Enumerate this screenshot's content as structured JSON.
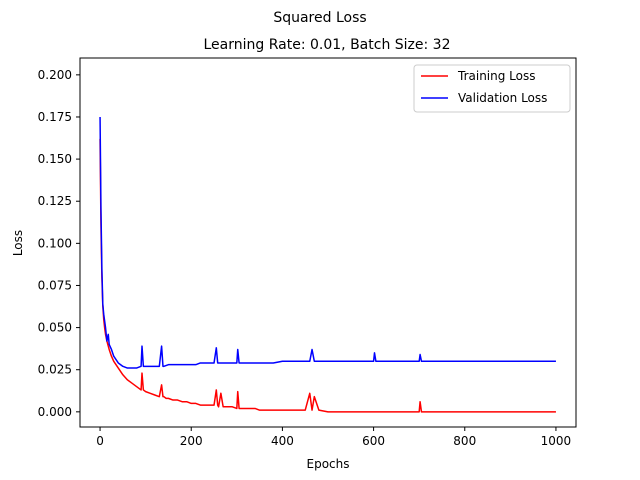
{
  "chart_data": {
    "type": "line",
    "title": "Squared Loss",
    "subtitle": "Learning Rate: 0.01, Batch Size: 32",
    "xlabel": "Epochs",
    "ylabel": "Loss",
    "xlim": [
      -44,
      1044
    ],
    "ylim": [
      -0.009,
      0.21
    ],
    "xticks": [
      0,
      200,
      400,
      600,
      800,
      1000
    ],
    "xtick_labels": [
      "0",
      "200",
      "400",
      "600",
      "800",
      "1000"
    ],
    "yticks": [
      0.0,
      0.025,
      0.05,
      0.075,
      0.1,
      0.125,
      0.15,
      0.175,
      0.2
    ],
    "ytick_labels": [
      "0.000",
      "0.025",
      "0.050",
      "0.075",
      "0.100",
      "0.125",
      "0.150",
      "0.175",
      "0.200"
    ],
    "grid": false,
    "legend": "top-right",
    "series": [
      {
        "name": "Training Loss",
        "color": "#ff0000",
        "x": [
          0,
          2,
          4,
          6,
          8,
          10,
          12,
          15,
          20,
          25,
          30,
          40,
          50,
          60,
          70,
          80,
          90,
          92,
          95,
          100,
          110,
          120,
          130,
          135,
          138,
          140,
          145,
          150,
          160,
          170,
          180,
          190,
          200,
          210,
          220,
          230,
          240,
          250,
          255,
          258,
          260,
          265,
          270,
          275,
          280,
          290,
          300,
          302,
          305,
          310,
          320,
          330,
          340,
          350,
          360,
          370,
          380,
          400,
          420,
          440,
          450,
          460,
          465,
          470,
          480,
          500,
          520,
          540,
          560,
          580,
          600,
          620,
          650,
          680,
          700,
          702,
          705,
          720,
          750,
          800,
          850,
          900,
          950,
          1000
        ],
        "values": [
          0.162,
          0.11,
          0.08,
          0.063,
          0.055,
          0.05,
          0.046,
          0.042,
          0.037,
          0.033,
          0.03,
          0.026,
          0.022,
          0.019,
          0.017,
          0.015,
          0.013,
          0.023,
          0.013,
          0.012,
          0.011,
          0.01,
          0.009,
          0.016,
          0.009,
          0.009,
          0.008,
          0.008,
          0.007,
          0.007,
          0.006,
          0.006,
          0.005,
          0.005,
          0.004,
          0.004,
          0.004,
          0.004,
          0.013,
          0.004,
          0.003,
          0.011,
          0.003,
          0.003,
          0.003,
          0.003,
          0.002,
          0.012,
          0.002,
          0.002,
          0.002,
          0.002,
          0.002,
          0.001,
          0.001,
          0.001,
          0.001,
          0.001,
          0.001,
          0.001,
          0.001,
          0.011,
          0.001,
          0.009,
          0.001,
          0.0,
          0.0,
          0.0,
          0.0,
          0.0,
          0.0,
          0.0,
          0.0,
          0.0,
          0.0,
          0.006,
          0.0,
          0.0,
          0.0,
          0.0,
          0.0,
          0.0,
          0.0,
          0.0
        ]
      },
      {
        "name": "Validation Loss",
        "color": "#0000ff",
        "x": [
          0,
          2,
          4,
          6,
          8,
          10,
          12,
          15,
          18,
          20,
          25,
          30,
          35,
          40,
          50,
          60,
          70,
          80,
          90,
          92,
          95,
          100,
          110,
          120,
          130,
          135,
          138,
          140,
          150,
          160,
          170,
          180,
          190,
          200,
          210,
          220,
          230,
          240,
          250,
          255,
          258,
          260,
          270,
          280,
          290,
          300,
          302,
          305,
          320,
          340,
          360,
          380,
          400,
          420,
          440,
          460,
          465,
          470,
          480,
          500,
          520,
          540,
          560,
          580,
          600,
          602,
          605,
          620,
          650,
          680,
          700,
          702,
          705,
          720,
          750,
          800,
          850,
          900,
          950,
          1000
        ],
        "values": [
          0.175,
          0.12,
          0.085,
          0.064,
          0.058,
          0.054,
          0.05,
          0.042,
          0.046,
          0.04,
          0.037,
          0.033,
          0.031,
          0.029,
          0.027,
          0.026,
          0.026,
          0.026,
          0.027,
          0.039,
          0.027,
          0.027,
          0.027,
          0.027,
          0.027,
          0.039,
          0.027,
          0.027,
          0.028,
          0.028,
          0.028,
          0.028,
          0.028,
          0.028,
          0.028,
          0.029,
          0.029,
          0.029,
          0.029,
          0.038,
          0.029,
          0.029,
          0.029,
          0.029,
          0.029,
          0.029,
          0.037,
          0.029,
          0.029,
          0.029,
          0.029,
          0.029,
          0.03,
          0.03,
          0.03,
          0.03,
          0.037,
          0.03,
          0.03,
          0.03,
          0.03,
          0.03,
          0.03,
          0.03,
          0.03,
          0.035,
          0.03,
          0.03,
          0.03,
          0.03,
          0.03,
          0.034,
          0.03,
          0.03,
          0.03,
          0.03,
          0.03,
          0.03,
          0.03,
          0.03
        ]
      }
    ]
  }
}
